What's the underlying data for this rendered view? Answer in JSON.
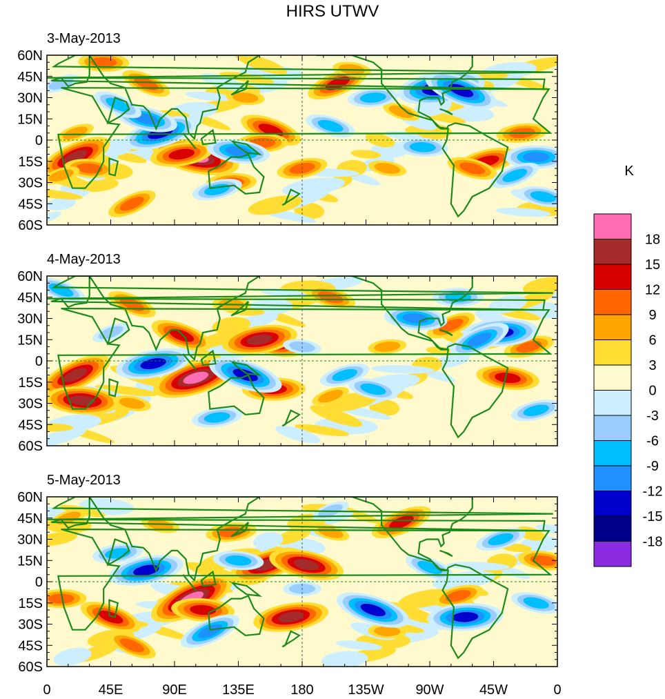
{
  "title": "HIRS UTWV",
  "panels": [
    {
      "date_label": "3-May-2013",
      "blobs": [
        {
          "lon": 20,
          "lat": -12,
          "val": 15
        },
        {
          "lon": 30,
          "lat": -20,
          "val": 9
        },
        {
          "lon": 10,
          "lat": -25,
          "val": 6
        },
        {
          "lon": 105,
          "lat": -12,
          "val": 18
        },
        {
          "lon": 95,
          "lat": -10,
          "val": 12
        },
        {
          "lon": 158,
          "lat": 7,
          "val": 12
        },
        {
          "lon": 152,
          "lat": -2,
          "val": 9
        },
        {
          "lon": 205,
          "lat": 40,
          "val": 12
        },
        {
          "lon": 215,
          "lat": 50,
          "val": 6
        },
        {
          "lon": 310,
          "lat": -15,
          "val": 12
        },
        {
          "lon": 300,
          "lat": -20,
          "val": 9
        },
        {
          "lon": 335,
          "lat": 5,
          "val": 9
        },
        {
          "lon": 70,
          "lat": 40,
          "val": 9
        },
        {
          "lon": 40,
          "lat": 55,
          "val": 9
        },
        {
          "lon": 20,
          "lat": 5,
          "val": 6
        },
        {
          "lon": 240,
          "lat": -20,
          "val": 6
        },
        {
          "lon": 180,
          "lat": -20,
          "val": 9
        },
        {
          "lon": 250,
          "lat": 20,
          "val": 6
        },
        {
          "lon": 130,
          "lat": -30,
          "val": 9
        },
        {
          "lon": 60,
          "lat": -45,
          "val": 9
        },
        {
          "lon": 140,
          "lat": 30,
          "val": 6
        },
        {
          "lon": 80,
          "lat": 5,
          "val": -15
        },
        {
          "lon": 70,
          "lat": 15,
          "val": -12
        },
        {
          "lon": 278,
          "lat": 37,
          "val": -18
        },
        {
          "lon": 292,
          "lat": 35,
          "val": -15
        },
        {
          "lon": 345,
          "lat": -12,
          "val": -12
        },
        {
          "lon": 330,
          "lat": -25,
          "val": -9
        },
        {
          "lon": 135,
          "lat": -8,
          "val": -12
        },
        {
          "lon": 120,
          "lat": -35,
          "val": -9
        },
        {
          "lon": 200,
          "lat": 10,
          "val": -9
        },
        {
          "lon": 230,
          "lat": 30,
          "val": -9
        },
        {
          "lon": 50,
          "lat": 25,
          "val": -9
        },
        {
          "lon": 265,
          "lat": -5,
          "val": -9
        },
        {
          "lon": 10,
          "lat": 40,
          "val": -6
        },
        {
          "lon": 350,
          "lat": -40,
          "val": -9
        }
      ]
    },
    {
      "date_label": "4-May-2013",
      "blobs": [
        {
          "lon": 20,
          "lat": -10,
          "val": 15
        },
        {
          "lon": 25,
          "lat": -28,
          "val": 15
        },
        {
          "lon": 105,
          "lat": -12,
          "val": 18
        },
        {
          "lon": 160,
          "lat": 12,
          "val": 12
        },
        {
          "lon": 150,
          "lat": 15,
          "val": 15
        },
        {
          "lon": 95,
          "lat": 18,
          "val": 12
        },
        {
          "lon": 160,
          "lat": -20,
          "val": 12
        },
        {
          "lon": 285,
          "lat": 25,
          "val": 9
        },
        {
          "lon": 325,
          "lat": -12,
          "val": 12
        },
        {
          "lon": 340,
          "lat": 10,
          "val": 9
        },
        {
          "lon": 200,
          "lat": 45,
          "val": 9
        },
        {
          "lon": 240,
          "lat": 10,
          "val": 6
        },
        {
          "lon": 60,
          "lat": 40,
          "val": 9
        },
        {
          "lon": 130,
          "lat": 40,
          "val": 6
        },
        {
          "lon": 200,
          "lat": -25,
          "val": 6
        },
        {
          "lon": 60,
          "lat": -30,
          "val": 6
        },
        {
          "lon": 75,
          "lat": -2,
          "val": -15
        },
        {
          "lon": 140,
          "lat": -10,
          "val": -15
        },
        {
          "lon": 320,
          "lat": 20,
          "val": -15
        },
        {
          "lon": 305,
          "lat": 15,
          "val": -12
        },
        {
          "lon": 260,
          "lat": 30,
          "val": -12
        },
        {
          "lon": 210,
          "lat": -10,
          "val": -9
        },
        {
          "lon": 230,
          "lat": -20,
          "val": -9
        },
        {
          "lon": 120,
          "lat": -40,
          "val": -9
        },
        {
          "lon": 10,
          "lat": 50,
          "val": -9
        },
        {
          "lon": 290,
          "lat": 45,
          "val": -9
        },
        {
          "lon": 45,
          "lat": 20,
          "val": -6
        },
        {
          "lon": 180,
          "lat": 10,
          "val": -6
        },
        {
          "lon": 345,
          "lat": -35,
          "val": -9
        }
      ]
    },
    {
      "date_label": "5-May-2013",
      "blobs": [
        {
          "lon": 102,
          "lat": -12,
          "val": 18
        },
        {
          "lon": 110,
          "lat": -20,
          "val": 12
        },
        {
          "lon": 155,
          "lat": 12,
          "val": 15
        },
        {
          "lon": 183,
          "lat": 12,
          "val": 15
        },
        {
          "lon": 172,
          "lat": -25,
          "val": 15
        },
        {
          "lon": 45,
          "lat": -25,
          "val": 12
        },
        {
          "lon": 10,
          "lat": -12,
          "val": 9
        },
        {
          "lon": 250,
          "lat": 42,
          "val": 12
        },
        {
          "lon": 350,
          "lat": 15,
          "val": 9
        },
        {
          "lon": 290,
          "lat": -10,
          "val": 9
        },
        {
          "lon": 200,
          "lat": 35,
          "val": 6
        },
        {
          "lon": 130,
          "lat": 35,
          "val": 9
        },
        {
          "lon": 60,
          "lat": -45,
          "val": 9
        },
        {
          "lon": 240,
          "lat": -35,
          "val": 6
        },
        {
          "lon": 15,
          "lat": 45,
          "val": 6
        },
        {
          "lon": 80,
          "lat": 40,
          "val": 6
        },
        {
          "lon": 70,
          "lat": 8,
          "val": -15
        },
        {
          "lon": 230,
          "lat": -20,
          "val": -15
        },
        {
          "lon": 295,
          "lat": -25,
          "val": -15
        },
        {
          "lon": 115,
          "lat": -35,
          "val": -12
        },
        {
          "lon": 135,
          "lat": 15,
          "val": -9
        },
        {
          "lon": 320,
          "lat": 30,
          "val": -9
        },
        {
          "lon": 345,
          "lat": -15,
          "val": -9
        },
        {
          "lon": 50,
          "lat": 20,
          "val": -9
        },
        {
          "lon": 270,
          "lat": 10,
          "val": -9
        },
        {
          "lon": 180,
          "lat": -5,
          "val": -6
        },
        {
          "lon": 200,
          "lat": 50,
          "val": -6
        }
      ]
    }
  ],
  "lat_labels": [
    "60N",
    "45N",
    "30N",
    "15N",
    "0",
    "15S",
    "30S",
    "45S",
    "60S"
  ],
  "lat_values": [
    60,
    45,
    30,
    15,
    0,
    -15,
    -30,
    -45,
    -60
  ],
  "lon_labels": [
    "0",
    "45E",
    "90E",
    "135E",
    "180",
    "135W",
    "90W",
    "45W",
    "0"
  ],
  "lon_values": [
    0,
    45,
    90,
    135,
    180,
    225,
    270,
    315,
    360
  ],
  "colorbar": {
    "unit": "K",
    "labels": [
      "18",
      "15",
      "12",
      "9",
      "6",
      "3",
      "0",
      "-3",
      "-6",
      "-9",
      "-12",
      "-15",
      "-18"
    ],
    "colors": [
      "#ff6eb4",
      "#a52a2a",
      "#d90000",
      "#ff6600",
      "#ffa500",
      "#ffdd33",
      "#fffacd",
      "#cceeff",
      "#99ccff",
      "#00bfff",
      "#1e90ff",
      "#0000cd",
      "#00008b",
      "#8a2be2"
    ]
  },
  "palette": {
    "coast": "#1a8a1a",
    "border": "#1a8a1a",
    "dash": "#1a8a1a",
    "missing": "#bbbbbb"
  }
}
